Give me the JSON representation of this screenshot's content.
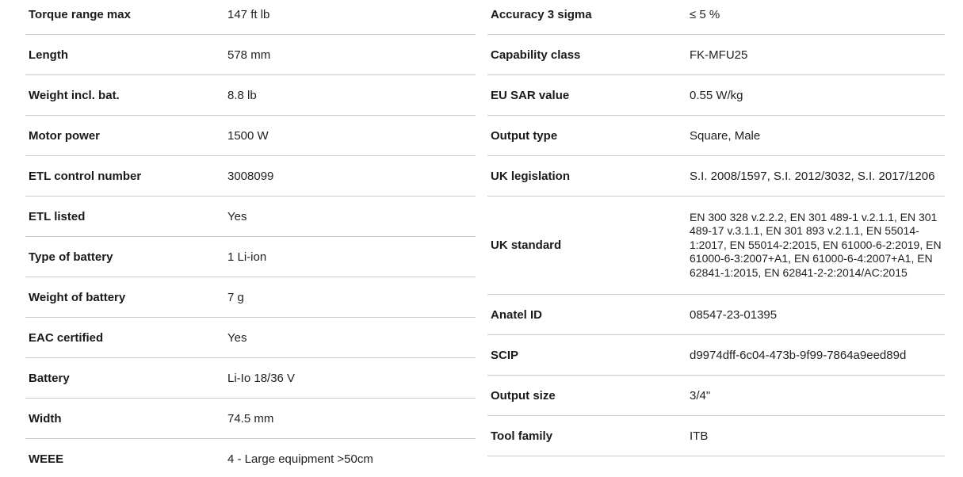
{
  "colors": {
    "background": "#ffffff",
    "divider": "#cbcbcb",
    "label_text": "#1a1a1a",
    "value_text": "#1f1f1f"
  },
  "spec_table": {
    "left": {
      "rows": [
        {
          "label": "Torque range max",
          "value": "147 ft lb"
        },
        {
          "label": "Length",
          "value": "578 mm"
        },
        {
          "label": "Weight incl. bat.",
          "value": "8.8 lb"
        },
        {
          "label": "Motor power",
          "value": "1500 W"
        },
        {
          "label": "ETL control number",
          "value": "3008099"
        },
        {
          "label": "ETL listed",
          "value": "Yes"
        },
        {
          "label": "Type of battery",
          "value": "1 Li-ion"
        },
        {
          "label": "Weight of battery",
          "value": "7 g"
        },
        {
          "label": "EAC certified",
          "value": "Yes"
        },
        {
          "label": "Battery",
          "value": "Li-Io 18/36 V"
        },
        {
          "label": "Width",
          "value": "74.5 mm"
        },
        {
          "label": "WEEE",
          "value": "4 - Large equipment >50cm"
        }
      ]
    },
    "right": {
      "rows": [
        {
          "label": "Accuracy 3 sigma",
          "value": "≤ 5 %"
        },
        {
          "label": "Capability class",
          "value": "FK-MFU25"
        },
        {
          "label": "EU SAR value",
          "value": "0.55 W/kg"
        },
        {
          "label": "Output type",
          "value": "Square, Male"
        },
        {
          "label": "UK legislation",
          "value": "S.I. 2008/1597, S.I. 2012/3032, S.I. 2017/1206"
        },
        {
          "label": "UK standard",
          "value": "EN 300 328 v.2.2.2, EN 301 489-1 v.2.1.1, EN 301 489-17 v.3.1.1, EN 301 893 v.2.1.1, EN 55014-1:2017, EN 55014-2:2015, EN 61000-6-2:2019, EN 61000-6-3:2007+A1, EN 61000-6-4:2007+A1, EN 62841-1:2015, EN 62841-2-2:2014/AC:2015"
        },
        {
          "label": "Anatel ID",
          "value": "08547-23-01395"
        },
        {
          "label": "SCIP",
          "value": "d9974dff-6c04-473b-9f99-7864a9eed89d"
        },
        {
          "label": "Output size",
          "value": "3/4\""
        },
        {
          "label": "Tool family",
          "value": "ITB"
        }
      ]
    }
  }
}
